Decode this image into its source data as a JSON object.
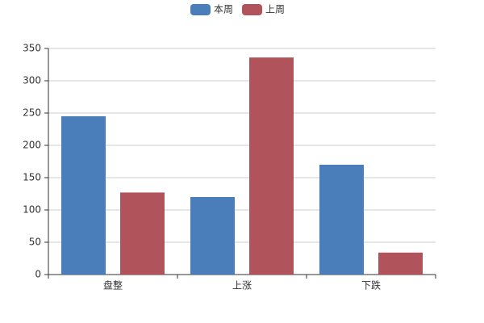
{
  "chart_data": {
    "type": "bar",
    "categories": [
      "盘整",
      "上涨",
      "下跌"
    ],
    "series": [
      {
        "name": "本周",
        "color": "#4a7ebb",
        "values": [
          245,
          120,
          170
        ]
      },
      {
        "name": "上周",
        "color": "#b0535a",
        "values": [
          127,
          336,
          34
        ]
      }
    ],
    "ylim": [
      0,
      350
    ],
    "yticks": [
      0,
      50,
      100,
      150,
      200,
      250,
      300,
      350
    ],
    "grid": true,
    "legend": "top"
  }
}
